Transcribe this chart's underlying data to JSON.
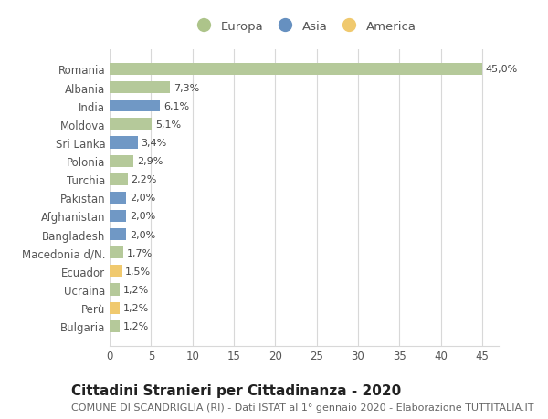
{
  "countries": [
    "Romania",
    "Albania",
    "India",
    "Moldova",
    "Sri Lanka",
    "Polonia",
    "Turchia",
    "Pakistan",
    "Afghanistan",
    "Bangladesh",
    "Macedonia d/N.",
    "Ecuador",
    "Ucraina",
    "Perù",
    "Bulgaria"
  ],
  "values": [
    45.0,
    7.3,
    6.1,
    5.1,
    3.4,
    2.9,
    2.2,
    2.0,
    2.0,
    2.0,
    1.7,
    1.5,
    1.2,
    1.2,
    1.2
  ],
  "labels": [
    "45,0%",
    "7,3%",
    "6,1%",
    "5,1%",
    "3,4%",
    "2,9%",
    "2,2%",
    "2,0%",
    "2,0%",
    "2,0%",
    "1,7%",
    "1,5%",
    "1,2%",
    "1,2%",
    "1,2%"
  ],
  "continents": [
    "Europa",
    "Europa",
    "Asia",
    "Europa",
    "Asia",
    "Europa",
    "Europa",
    "Asia",
    "Asia",
    "Asia",
    "Europa",
    "America",
    "Europa",
    "America",
    "Europa"
  ],
  "colors": {
    "Europa": "#b5c99a",
    "Asia": "#7098c5",
    "America": "#f0c96e"
  },
  "legend_colors": {
    "Europa": "#adc48a",
    "Asia": "#6690c0",
    "America": "#f0c96e"
  },
  "xlim": [
    0,
    47
  ],
  "xticks": [
    0,
    5,
    10,
    15,
    20,
    25,
    30,
    35,
    40,
    45
  ],
  "title": "Cittadini Stranieri per Cittadinanza - 2020",
  "subtitle": "COMUNE DI SCANDRIGLIA (RI) - Dati ISTAT al 1° gennaio 2020 - Elaborazione TUTTITALIA.IT",
  "bg_color": "#ffffff",
  "grid_color": "#d8d8d8",
  "bar_height": 0.65,
  "label_fontsize": 8.0,
  "ytick_fontsize": 8.5,
  "xtick_fontsize": 8.5,
  "title_fontsize": 11,
  "subtitle_fontsize": 8.0
}
